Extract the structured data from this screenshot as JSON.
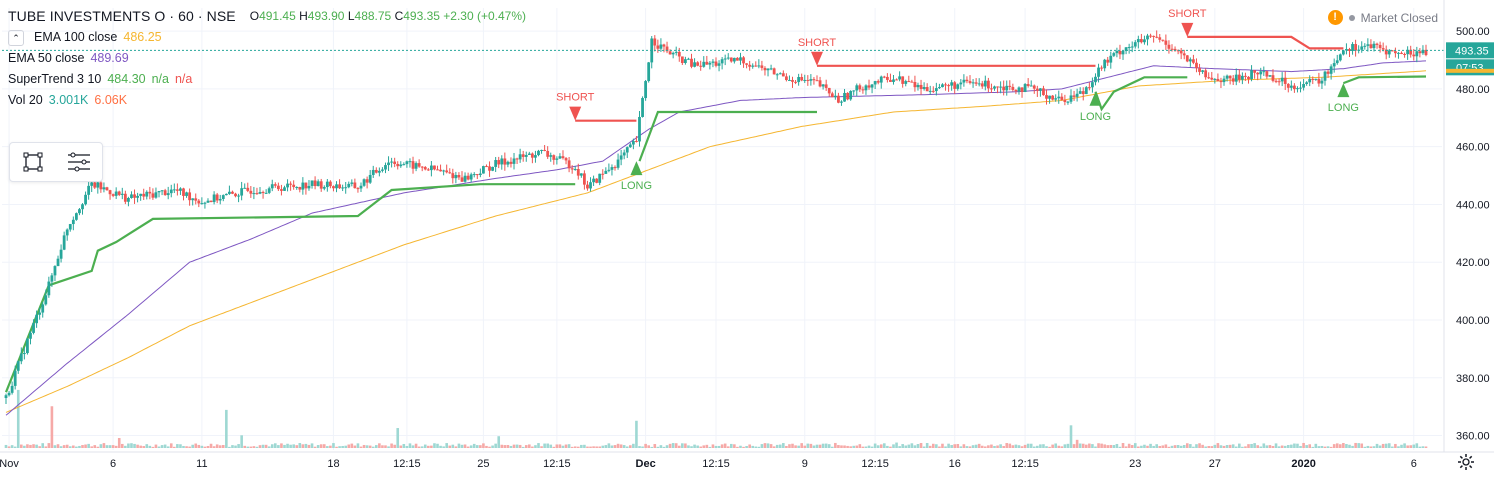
{
  "header": {
    "title": "TUBE INVESTMENTS O · 60 · NSE",
    "ohlc": [
      {
        "k": "O",
        "v": "491.45"
      },
      {
        "k": "H",
        "v": "493.90"
      },
      {
        "k": "L",
        "v": "488.75"
      },
      {
        "k": "C",
        "v": "493.35"
      }
    ],
    "change": "+2.30 (+0.47%)"
  },
  "indicators": [
    {
      "name": "EMA 100 close",
      "value": "486.25",
      "value2": "",
      "value3": "",
      "color": "#f5b631"
    },
    {
      "name": "EMA 50 close",
      "value": "489.69",
      "value2": "",
      "value3": "",
      "color": "#7e57c2"
    },
    {
      "name": "SuperTrend 3 10",
      "value": "484.30",
      "value2": "n/a",
      "value3": "n/a",
      "color": "#4caf50",
      "color2": "#ef5350"
    },
    {
      "name": "Vol 20",
      "value": "3.001K",
      "value2": "6.06K",
      "value3": "",
      "color": "#26a69a",
      "color2": "#ff7043"
    }
  ],
  "status": {
    "warning": "!",
    "market": "Market Closed"
  },
  "toolbar": {
    "icons": [
      "rectangle-select-icon",
      "indicator-list-icon"
    ]
  },
  "price_label": "493.35",
  "countdown_label": "07:53",
  "colors": {
    "up": "#26a69a",
    "down": "#ef5350",
    "ema100": "#f5b631",
    "ema50": "#7e57c2",
    "st_long": "#4caf50",
    "st_short": "#ef5350",
    "vol_up": "#9ed8d3",
    "vol_down": "#f6a9a7",
    "grid": "#f0f3fa",
    "axis_text": "#131722"
  },
  "chart_data": {
    "type": "candlestick",
    "ylim": [
      355,
      508
    ],
    "yticks": [
      360,
      380,
      400,
      420,
      440,
      460,
      480,
      500
    ],
    "ytick_labels": [
      "360.00",
      "380.00",
      "400.00",
      "420.00",
      "440.00",
      "460.00",
      "480.00",
      "500.00"
    ],
    "last_price": 493.35,
    "xtick_labels": [
      "Nov",
      "6",
      "11",
      "18",
      "12:15",
      "25",
      "12:15",
      "Dec",
      "12:15",
      "9",
      "12:15",
      "16",
      "12:15",
      "23",
      "27",
      "2020",
      "6"
    ],
    "xtick_bars": [
      1,
      35,
      64,
      107,
      131,
      156,
      180,
      209,
      232,
      261,
      284,
      310,
      333,
      369,
      395,
      424,
      460
    ],
    "n_bars": 465,
    "price_anchors": [
      [
        0,
        373
      ],
      [
        6,
        390
      ],
      [
        14,
        412
      ],
      [
        20,
        432
      ],
      [
        28,
        447
      ],
      [
        40,
        442
      ],
      [
        55,
        445
      ],
      [
        64,
        441
      ],
      [
        80,
        445
      ],
      [
        100,
        447
      ],
      [
        115,
        446
      ],
      [
        125,
        455
      ],
      [
        140,
        452
      ],
      [
        150,
        449
      ],
      [
        160,
        454
      ],
      [
        175,
        458
      ],
      [
        186,
        453
      ],
      [
        190,
        446
      ],
      [
        200,
        455
      ],
      [
        206,
        462
      ],
      [
        211,
        497
      ],
      [
        216,
        493
      ],
      [
        225,
        488
      ],
      [
        240,
        490
      ],
      [
        255,
        484
      ],
      [
        265,
        482
      ],
      [
        272,
        476
      ],
      [
        280,
        481
      ],
      [
        290,
        484
      ],
      [
        300,
        480
      ],
      [
        315,
        482
      ],
      [
        335,
        480
      ],
      [
        345,
        476
      ],
      [
        352,
        479
      ],
      [
        358,
        488
      ],
      [
        365,
        494
      ],
      [
        375,
        498
      ],
      [
        382,
        494
      ],
      [
        386,
        490
      ],
      [
        392,
        484
      ],
      [
        400,
        483
      ],
      [
        410,
        486
      ],
      [
        420,
        481
      ],
      [
        430,
        483
      ],
      [
        437,
        494
      ],
      [
        445,
        495
      ],
      [
        455,
        492
      ],
      [
        464,
        493
      ]
    ],
    "ema50_anchors": [
      [
        0,
        367
      ],
      [
        20,
        385
      ],
      [
        40,
        402
      ],
      [
        60,
        420
      ],
      [
        80,
        428
      ],
      [
        100,
        437
      ],
      [
        130,
        444
      ],
      [
        160,
        449
      ],
      [
        180,
        452
      ],
      [
        195,
        455
      ],
      [
        210,
        466
      ],
      [
        220,
        472
      ],
      [
        240,
        476
      ],
      [
        260,
        477
      ],
      [
        300,
        478
      ],
      [
        330,
        479
      ],
      [
        345,
        480
      ],
      [
        360,
        484
      ],
      [
        375,
        488
      ],
      [
        395,
        487
      ],
      [
        420,
        486
      ],
      [
        437,
        487
      ],
      [
        450,
        489
      ],
      [
        464,
        489.69
      ]
    ],
    "ema100_anchors": [
      [
        0,
        368
      ],
      [
        20,
        377
      ],
      [
        40,
        387
      ],
      [
        60,
        398
      ],
      [
        80,
        406
      ],
      [
        100,
        414
      ],
      [
        130,
        426
      ],
      [
        160,
        436
      ],
      [
        190,
        444
      ],
      [
        210,
        452
      ],
      [
        230,
        460
      ],
      [
        260,
        467
      ],
      [
        290,
        472
      ],
      [
        320,
        474
      ],
      [
        345,
        476
      ],
      [
        370,
        481
      ],
      [
        400,
        483
      ],
      [
        430,
        484
      ],
      [
        464,
        486.25
      ]
    ],
    "supertrend": [
      {
        "trend": "long",
        "points": [
          [
            0,
            375
          ],
          [
            14,
            412
          ],
          [
            28,
            417
          ],
          [
            30,
            424
          ],
          [
            36,
            427
          ],
          [
            48,
            435
          ],
          [
            115,
            436
          ],
          [
            126,
            445
          ],
          [
            155,
            447
          ],
          [
            186,
            447
          ]
        ]
      },
      {
        "trend": "short",
        "points": [
          [
            186,
            469
          ],
          [
            206,
            469
          ]
        ]
      },
      {
        "trend": "long",
        "points": [
          [
            207,
            455
          ],
          [
            213,
            472
          ],
          [
            265,
            472
          ]
        ]
      },
      {
        "trend": "short",
        "points": [
          [
            265,
            488
          ],
          [
            356,
            488
          ]
        ]
      },
      {
        "trend": "long",
        "points": [
          [
            356,
            479
          ],
          [
            358,
            473
          ],
          [
            362,
            479
          ],
          [
            372,
            484
          ],
          [
            386,
            484
          ]
        ]
      },
      {
        "trend": "short",
        "points": [
          [
            386,
            498
          ],
          [
            420,
            498
          ],
          [
            426,
            494
          ],
          [
            437,
            494
          ]
        ]
      },
      {
        "trend": "long",
        "points": [
          [
            437,
            482
          ],
          [
            442,
            484
          ],
          [
            464,
            484.3
          ]
        ]
      }
    ],
    "signals": [
      {
        "type": "short",
        "bar": 186,
        "price": 469,
        "label": "SHORT"
      },
      {
        "type": "long",
        "bar": 206,
        "price": 455,
        "label": "LONG"
      },
      {
        "type": "short",
        "bar": 265,
        "price": 488,
        "label": "SHORT"
      },
      {
        "type": "long",
        "bar": 356,
        "price": 479,
        "label": "LONG"
      },
      {
        "type": "short",
        "bar": 386,
        "price": 498,
        "label": "SHORT"
      },
      {
        "type": "long",
        "bar": 437,
        "price": 482,
        "label": "LONG"
      }
    ],
    "volume_spikes": [
      {
        "bar": 4,
        "value": 3.2,
        "dir": "up"
      },
      {
        "bar": 15,
        "value": 2.3,
        "dir": "down"
      },
      {
        "bar": 37,
        "value": 0.55,
        "dir": "down"
      },
      {
        "bar": 72,
        "value": 2.1,
        "dir": "up"
      },
      {
        "bar": 77,
        "value": 0.7,
        "dir": "up"
      },
      {
        "bar": 128,
        "value": 1.1,
        "dir": "up"
      },
      {
        "bar": 161,
        "value": 0.65,
        "dir": "up"
      },
      {
        "bar": 206,
        "value": 1.5,
        "dir": "up"
      },
      {
        "bar": 291,
        "value": 0.3,
        "dir": "up"
      },
      {
        "bar": 348,
        "value": 1.25,
        "dir": "up"
      },
      {
        "bar": 350,
        "value": 0.45,
        "dir": "down"
      }
    ],
    "volume_max": 6.06
  }
}
